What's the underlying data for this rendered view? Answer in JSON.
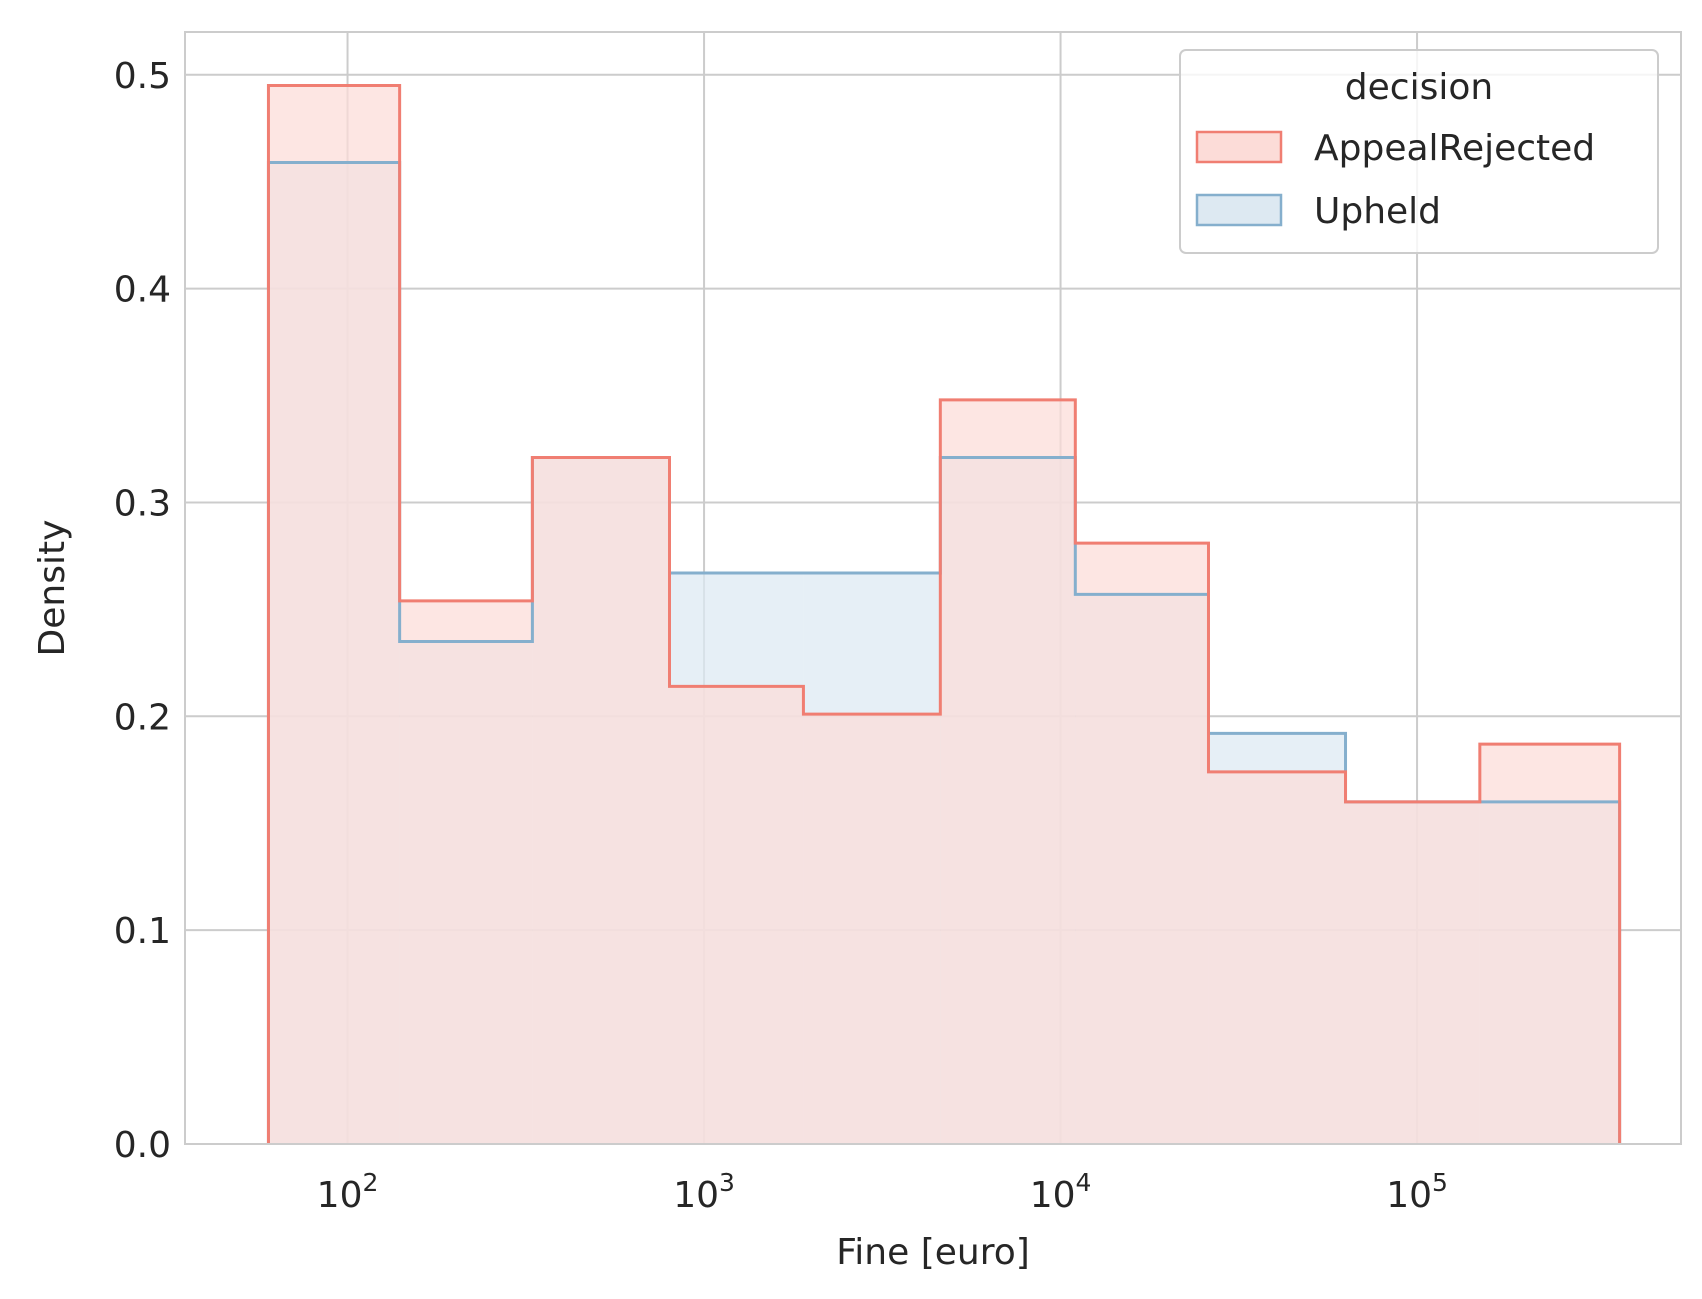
{
  "chart_data": {
    "type": "histogram",
    "xscale": "log",
    "xlabel": "Fine [euro]",
    "ylabel": "Density",
    "xlim": [
      35,
      550000
    ],
    "ylim": [
      0,
      0.52
    ],
    "grid": true,
    "bin_edges": [
      60,
      140,
      330,
      800,
      1900,
      4600,
      11000,
      26000,
      63000,
      150000,
      370000
    ],
    "x_ticks": [
      {
        "value": 100,
        "base": "10",
        "exp": "2"
      },
      {
        "value": 1000,
        "base": "10",
        "exp": "3"
      },
      {
        "value": 10000,
        "base": "10",
        "exp": "4"
      },
      {
        "value": 100000,
        "base": "10",
        "exp": "5"
      }
    ],
    "y_ticks": [
      0.0,
      0.1,
      0.2,
      0.3,
      0.4,
      0.5
    ],
    "y_tick_labels": [
      "0.0",
      "0.1",
      "0.2",
      "0.3",
      "0.4",
      "0.5"
    ],
    "legend": {
      "title": "decision",
      "position": "upper right"
    },
    "series": [
      {
        "name": "Upheld",
        "edge_color": "#85afcd",
        "fill_color": "#dde9f2",
        "values": [
          0.459,
          0.235,
          0.321,
          0.267,
          0.267,
          0.321,
          0.257,
          0.192,
          0.16,
          0.16
        ]
      },
      {
        "name": "AppealRejected",
        "edge_color": "#f07e72",
        "fill_color": "#fcdcd8",
        "values": [
          0.495,
          0.254,
          0.321,
          0.214,
          0.201,
          0.348,
          0.281,
          0.174,
          0.16,
          0.187
        ]
      }
    ]
  }
}
